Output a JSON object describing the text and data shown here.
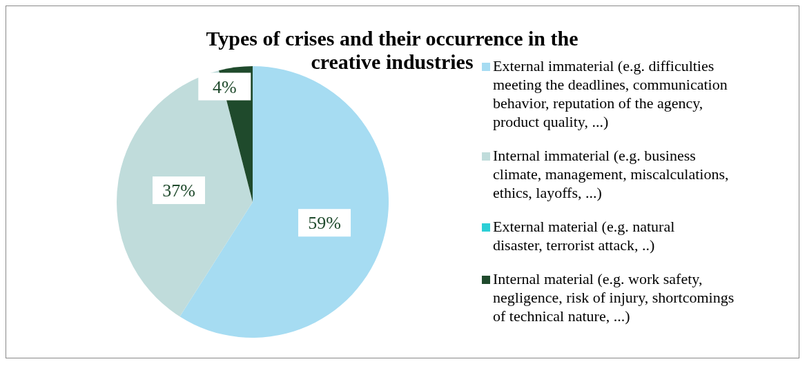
{
  "chart_data": {
    "type": "pie",
    "title": "Types of crises and their occurrence in the creative industries",
    "categories": [
      "External immaterial (e.g. difficulties meeting the deadlines, communication behavior, reputation of the agency, product quality, ...)",
      "Internal immaterial (e.g. business climate, management, miscalculations, ethics, layoffs, ...)",
      "External material (e.g. natural disaster, terrorist attack, ..)",
      "Internal material (e.g. work safety, negligence, risk of injury, shortcomings of technical nature, ...)"
    ],
    "values": [
      59,
      37,
      0,
      4
    ],
    "colors": [
      "#a6dcf2",
      "#c0dcdb",
      "#2ccfd6",
      "#1f4a2c"
    ],
    "value_labels": [
      "59%",
      "37%",
      null,
      "4%"
    ],
    "legend": "right"
  }
}
